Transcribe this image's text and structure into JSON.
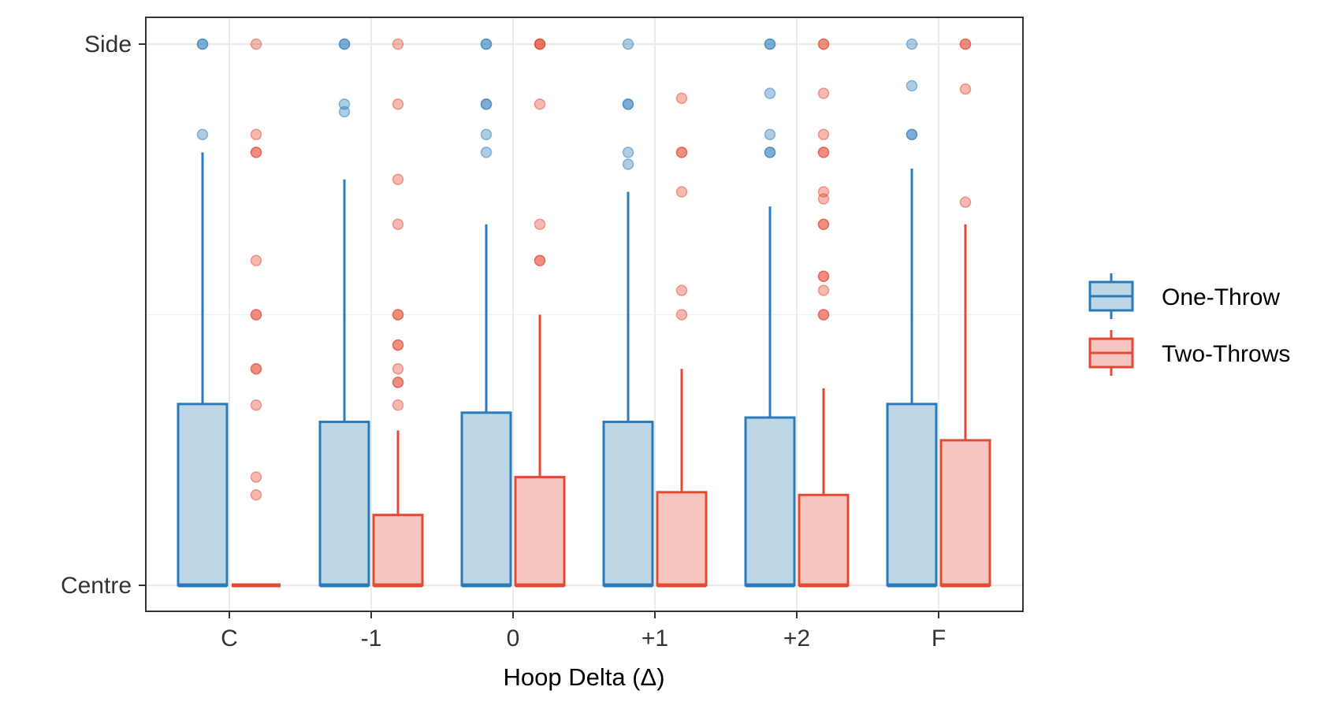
{
  "chart_data": {
    "type": "boxplot",
    "title": "",
    "xlabel": "Hoop Delta (Δ)",
    "ylabel": "",
    "categories": [
      "C",
      "-1",
      "0",
      "+1",
      "+2",
      "F"
    ],
    "ylim": [
      0,
      1
    ],
    "y_ticks": [
      {
        "value": 0,
        "label": "Centre"
      },
      {
        "value": 1,
        "label": "Side"
      }
    ],
    "grid": true,
    "legend_position": "right",
    "series": [
      {
        "name": "One-Throw",
        "color": "#2b7bba",
        "fill": "#bdd7e7",
        "boxes": [
          {
            "q1": 0,
            "median": 0,
            "q3": 0.335,
            "whisker_low": 0,
            "whisker_high": 0.8,
            "outliers": [
              1.0,
              1.0,
              0.833
            ]
          },
          {
            "q1": 0,
            "median": 0,
            "q3": 0.302,
            "whisker_low": 0,
            "whisker_high": 0.75,
            "outliers": [
              1.0,
              1.0,
              0.889,
              0.875
            ]
          },
          {
            "q1": 0,
            "median": 0,
            "q3": 0.319,
            "whisker_low": 0,
            "whisker_high": 0.667,
            "outliers": [
              1.0,
              1.0,
              0.889,
              0.889,
              0.833,
              0.8
            ]
          },
          {
            "q1": 0,
            "median": 0,
            "q3": 0.302,
            "whisker_low": 0,
            "whisker_high": 0.727,
            "outliers": [
              1.0,
              0.889,
              0.889,
              0.8,
              0.778
            ]
          },
          {
            "q1": 0,
            "median": 0,
            "q3": 0.31,
            "whisker_low": 0,
            "whisker_high": 0.7,
            "outliers": [
              1.0,
              1.0,
              0.909,
              0.833,
              0.8,
              0.8
            ]
          },
          {
            "q1": 0,
            "median": 0,
            "q3": 0.335,
            "whisker_low": 0,
            "whisker_high": 0.77,
            "outliers": [
              1.0,
              0.923,
              0.833,
              0.833
            ]
          }
        ]
      },
      {
        "name": "Two-Throws",
        "color": "#e34a33",
        "fill": "#f7c5c0",
        "boxes": [
          {
            "q1": 0,
            "median": 0,
            "q3": 0,
            "whisker_low": 0,
            "whisker_high": 0,
            "outliers": [
              1.0,
              0.833,
              0.8,
              0.8,
              0.6,
              0.5,
              0.5,
              0.4,
              0.4,
              0.333,
              0.2,
              0.167
            ]
          },
          {
            "q1": 0,
            "median": 0,
            "q3": 0.13,
            "whisker_low": 0,
            "whisker_high": 0.286,
            "outliers": [
              1.0,
              0.889,
              0.75,
              0.667,
              0.5,
              0.5,
              0.444,
              0.444,
              0.4,
              0.375,
              0.375,
              0.333
            ]
          },
          {
            "q1": 0,
            "median": 0,
            "q3": 0.2,
            "whisker_low": 0,
            "whisker_high": 0.5,
            "outliers": [
              1.0,
              1.0,
              1.0,
              0.889,
              0.667,
              0.6,
              0.6
            ]
          },
          {
            "q1": 0,
            "median": 0,
            "q3": 0.172,
            "whisker_low": 0,
            "whisker_high": 0.4,
            "outliers": [
              0.9,
              0.8,
              0.8,
              0.727,
              0.545,
              0.5
            ]
          },
          {
            "q1": 0,
            "median": 0,
            "q3": 0.167,
            "whisker_low": 0,
            "whisker_high": 0.364,
            "outliers": [
              1.0,
              1.0,
              0.909,
              0.833,
              0.8,
              0.8,
              0.727,
              0.714,
              0.667,
              0.667,
              0.571,
              0.571,
              0.545,
              0.5,
              0.5
            ]
          },
          {
            "q1": 0,
            "median": 0,
            "q3": 0.268,
            "whisker_low": 0,
            "whisker_high": 0.667,
            "outliers": [
              1.0,
              1.0,
              0.917,
              0.708
            ]
          }
        ]
      }
    ]
  }
}
